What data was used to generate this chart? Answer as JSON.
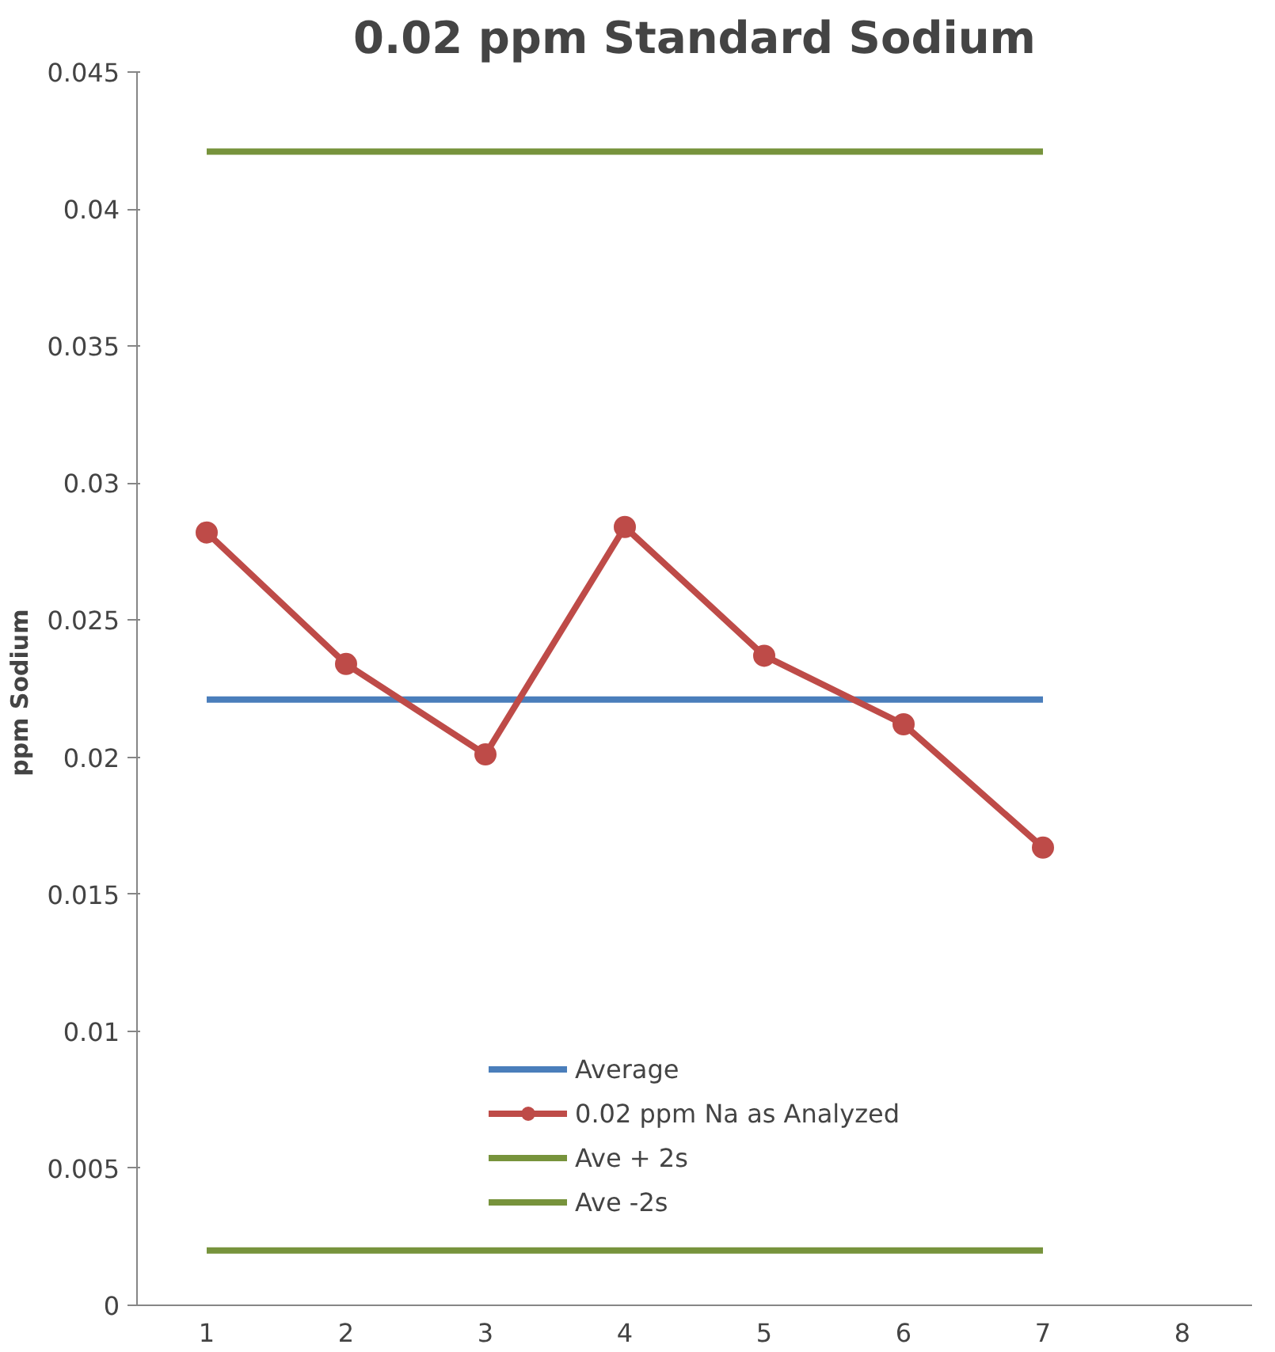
{
  "chart_data": {
    "type": "line",
    "title": "0.02 ppm Standard Sodium",
    "ylabel": "ppm  Sodium",
    "categories": [
      "1",
      "2",
      "3",
      "4",
      "5",
      "6",
      "7",
      "8"
    ],
    "series": [
      {
        "name": "Average",
        "color": "#4a7ebb",
        "marker": "none",
        "values": [
          0.0221,
          0.0221,
          0.0221,
          0.0221,
          0.0221,
          0.0221,
          0.0221,
          null
        ]
      },
      {
        "name": "0.02 ppm Na as Analyzed",
        "color": "#be4b48",
        "marker": "circle",
        "values": [
          0.0282,
          0.0234,
          0.0201,
          0.0284,
          0.0237,
          0.0212,
          0.0167,
          null
        ]
      },
      {
        "name": "Ave + 2s",
        "color": "#77933c",
        "marker": "none",
        "values": [
          0.0421,
          0.0421,
          0.0421,
          0.0421,
          0.0421,
          0.0421,
          0.0421,
          null
        ]
      },
      {
        "name": "Ave -2s",
        "color": "#77933c",
        "marker": "none",
        "values": [
          0.002,
          0.002,
          0.002,
          0.002,
          0.002,
          0.002,
          0.002,
          null
        ]
      }
    ],
    "ylim": [
      0,
      0.045
    ],
    "yticks": [
      0,
      0.005,
      0.01,
      0.015,
      0.02,
      0.025,
      0.03,
      0.035,
      0.04,
      0.045
    ],
    "grid": false,
    "legend": "bottom"
  }
}
